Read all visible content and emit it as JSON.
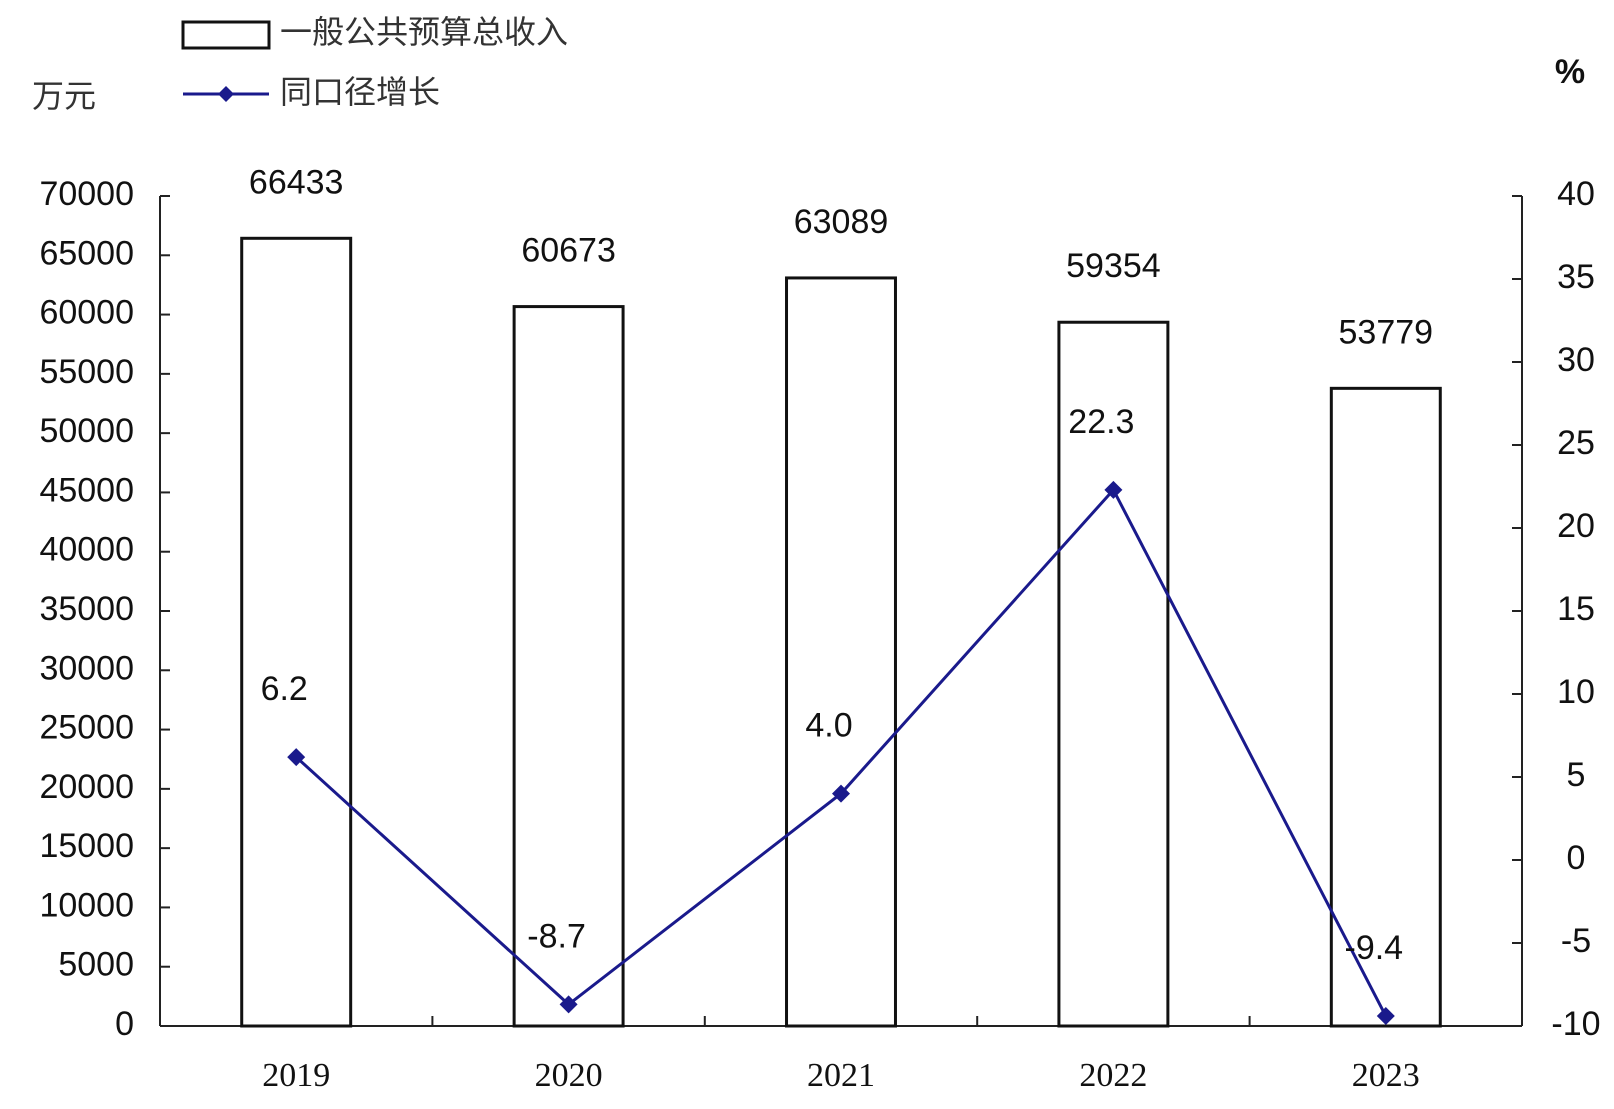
{
  "chart_data": {
    "type": "bar-line",
    "y_unit": "万元",
    "y2_unit": "%",
    "categories": [
      "2019",
      "2020",
      "2021",
      "2022",
      "2023"
    ],
    "series": [
      {
        "name": "一般公共预算总收入",
        "type": "bar",
        "color": "#ffffff",
        "values": [
          66433,
          60673,
          63089,
          59354,
          53779
        ]
      },
      {
        "name": "同口径增长",
        "type": "line",
        "axis": "y2",
        "color": "#1a1a8c",
        "values": [
          6.2,
          -8.7,
          4.0,
          22.3,
          -9.4
        ],
        "value_labels": [
          "6.2",
          "-8.7",
          "4.0",
          "22.3",
          "-9.4"
        ]
      }
    ],
    "ylim": [
      0,
      70000
    ],
    "yticks": [
      0,
      5000,
      10000,
      15000,
      20000,
      25000,
      30000,
      35000,
      40000,
      45000,
      50000,
      55000,
      60000,
      65000,
      70000
    ],
    "y2lim": [
      -10,
      40
    ],
    "y2ticks": [
      -10,
      -5,
      0,
      5,
      10,
      15,
      20,
      25,
      30,
      35,
      40
    ],
    "legend": "top-left"
  }
}
